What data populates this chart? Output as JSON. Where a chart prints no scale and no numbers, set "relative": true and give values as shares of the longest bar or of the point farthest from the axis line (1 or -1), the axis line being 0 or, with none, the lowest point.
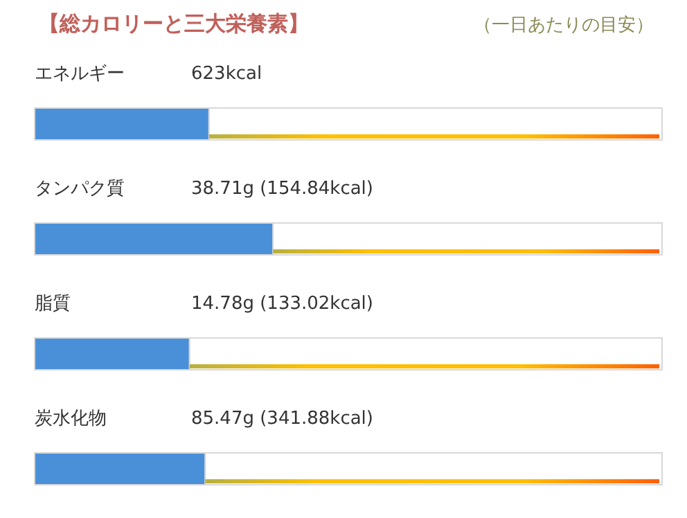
{
  "chart_data": {
    "type": "bar",
    "orientation": "horizontal",
    "stacked": true,
    "relative": true,
    "title": "【総カロリーと三大栄養素】",
    "subtitle": "（一日あたりの目安）",
    "categories": [
      "エネルギー",
      "タンパク質",
      "脂質",
      "炭水化物"
    ],
    "annotations": [
      "623kcal",
      "38.71g (154.84kcal)",
      "14.78g (133.02kcal)",
      "85.47g (341.88kcal)"
    ],
    "series": [
      {
        "color": "#4a90d9",
        "values": [
          0.278,
          0.38,
          0.247,
          0.272
        ]
      },
      {
        "color": "#ffffff",
        "values": [
          0.722,
          0.62,
          0.753,
          0.728
        ]
      }
    ]
  }
}
